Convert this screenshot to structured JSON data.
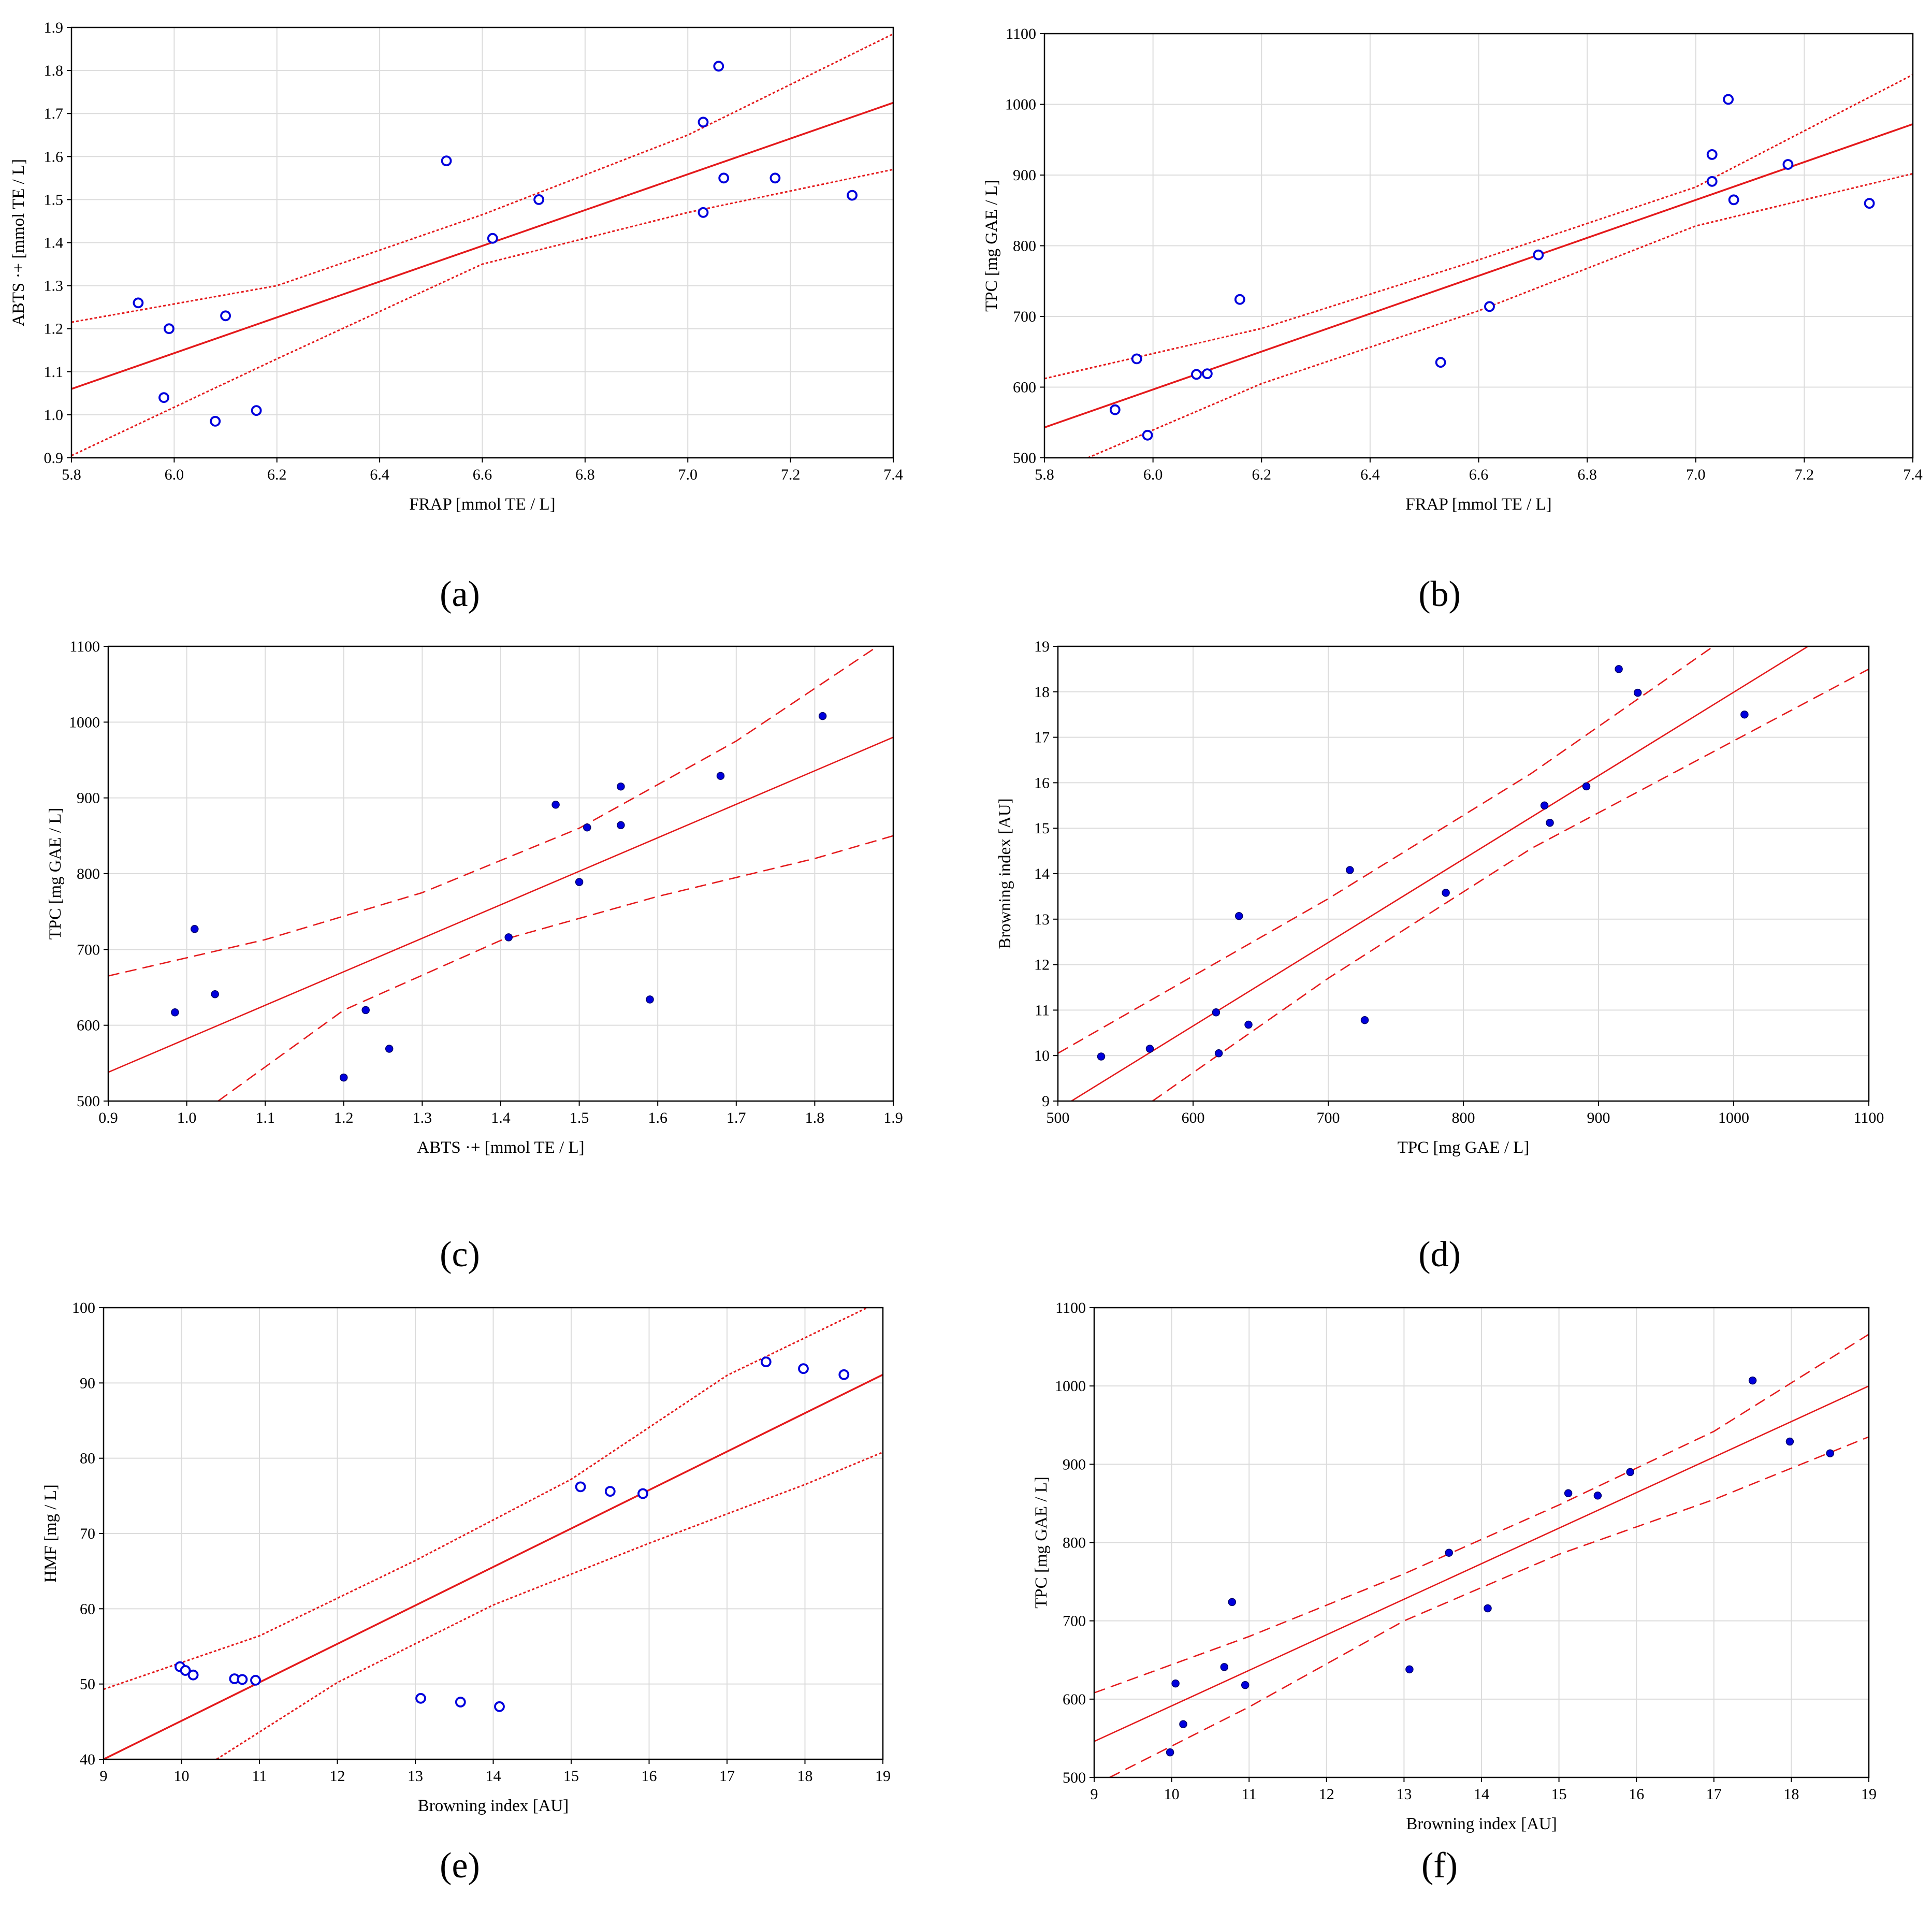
{
  "chart_data": [
    {
      "id": "a",
      "type": "scatter",
      "caption": "(a)",
      "xlabel": "FRAP [mmol TE / L]",
      "ylabel": "ABTS ·+ [mmol TE / L]",
      "xlim": [
        5.8,
        7.4
      ],
      "ylim": [
        0.9,
        1.9
      ],
      "xticks": [
        "5.8",
        "6.0",
        "6.2",
        "6.4",
        "6.6",
        "6.8",
        "7.0",
        "7.2",
        "7.4"
      ],
      "yticks": [
        "0.9",
        "1.0",
        "1.1",
        "1.2",
        "1.3",
        "1.4",
        "1.5",
        "1.6",
        "1.7",
        "1.8",
        "1.9"
      ],
      "grid": true,
      "points": {
        "x": [
          5.93,
          5.99,
          6.1,
          5.98,
          6.08,
          6.16,
          6.53,
          6.62,
          6.71,
          7.03,
          7.06,
          7.07,
          7.03,
          7.17,
          7.32
        ],
        "y": [
          1.26,
          1.2,
          1.23,
          1.04,
          0.985,
          1.01,
          1.59,
          1.41,
          1.5,
          1.68,
          1.81,
          1.55,
          1.47,
          1.55,
          1.51
        ]
      },
      "fit": {
        "x": [
          5.8,
          7.4
        ],
        "y": [
          1.06,
          1.725
        ]
      },
      "ci_upper": {
        "x": [
          5.8,
          6.2,
          6.6,
          7.0,
          7.4
        ],
        "y": [
          1.215,
          1.3,
          1.465,
          1.65,
          1.885
        ]
      },
      "ci_lower": {
        "x": [
          5.8,
          6.2,
          6.6,
          7.0,
          7.4
        ],
        "y": [
          0.905,
          1.13,
          1.35,
          1.47,
          1.57
        ]
      },
      "line_style": "dotted",
      "marker": "open"
    },
    {
      "id": "b",
      "type": "scatter",
      "caption": "(b)",
      "xlabel": "FRAP [mmol TE / L]",
      "ylabel": "TPC [mg GAE / L]",
      "xlim": [
        5.8,
        7.4
      ],
      "ylim": [
        500,
        1100
      ],
      "xticks": [
        "5.8",
        "6.0",
        "6.2",
        "6.4",
        "6.6",
        "6.8",
        "7.0",
        "7.2",
        "7.4"
      ],
      "yticks": [
        "500",
        "600",
        "700",
        "800",
        "900",
        "1000",
        "1100"
      ],
      "grid": true,
      "points": {
        "x": [
          5.93,
          5.97,
          5.99,
          6.08,
          6.1,
          6.16,
          6.53,
          6.62,
          6.71,
          7.03,
          7.03,
          7.06,
          7.07,
          7.17,
          7.32
        ],
        "y": [
          568,
          640,
          532,
          618,
          619,
          724,
          635,
          714,
          787,
          929,
          891,
          1007,
          865,
          915,
          860
        ]
      },
      "fit": {
        "x": [
          5.8,
          7.4
        ],
        "y": [
          543,
          972
        ]
      },
      "ci_upper": {
        "x": [
          5.8,
          6.2,
          6.6,
          7.0,
          7.4
        ],
        "y": [
          612,
          683,
          780,
          883,
          1042
        ]
      },
      "ci_lower": {
        "x": [
          5.88,
          6.2,
          6.6,
          7.0,
          7.4
        ],
        "y": [
          500,
          605,
          708,
          828,
          902
        ]
      },
      "line_style": "dotted",
      "marker": "open"
    },
    {
      "id": "c",
      "type": "scatter",
      "caption": "(c)",
      "xlabel": "ABTS ·+ [mmol TE / L]",
      "ylabel": "TPC [mg GAE / L]",
      "xlim": [
        0.9,
        1.9
      ],
      "ylim": [
        500,
        1100
      ],
      "xticks": [
        "0.9",
        "1.0",
        "1.1",
        "1.2",
        "1.3",
        "1.4",
        "1.5",
        "1.6",
        "1.7",
        "1.8",
        "1.9"
      ],
      "yticks": [
        "500",
        "600",
        "700",
        "800",
        "900",
        "1000",
        "1100"
      ],
      "grid": true,
      "points": {
        "x": [
          0.985,
          1.01,
          1.036,
          1.2,
          1.228,
          1.258,
          1.41,
          1.47,
          1.5,
          1.51,
          1.553,
          1.553,
          1.59,
          1.68,
          1.81
        ],
        "y": [
          617,
          727,
          641,
          531,
          620,
          569,
          716,
          891,
          789,
          861,
          915,
          864,
          634,
          929,
          1008
        ]
      },
      "fit": {
        "x": [
          0.9,
          1.9
        ],
        "y": [
          538,
          980
        ]
      },
      "ci_upper": {
        "x": [
          0.9,
          1.1,
          1.3,
          1.5,
          1.7,
          1.88
        ],
        "y": [
          665,
          713,
          775,
          860,
          975,
          1100
        ]
      },
      "ci_lower": {
        "x": [
          1.04,
          1.2,
          1.4,
          1.6,
          1.8,
          1.9
        ],
        "y": [
          500,
          620,
          712,
          770,
          820,
          850
        ]
      },
      "line_style": "dashed",
      "marker": "filled"
    },
    {
      "id": "d",
      "type": "scatter",
      "caption": "(d)",
      "xlabel": "TPC [mg GAE / L]",
      "ylabel": "Browning index [AU]",
      "xlim": [
        500,
        1100
      ],
      "ylim": [
        9,
        19
      ],
      "xticks": [
        "500",
        "600",
        "700",
        "800",
        "900",
        "1000",
        "1100"
      ],
      "yticks": [
        "9",
        "10",
        "11",
        "12",
        "13",
        "14",
        "15",
        "16",
        "17",
        "18",
        "19"
      ],
      "grid": true,
      "points": {
        "x": [
          532,
          568,
          617,
          619,
          634,
          641,
          716,
          727,
          787,
          860,
          864,
          891,
          915,
          929,
          1008
        ],
        "y": [
          9.98,
          10.15,
          10.95,
          10.05,
          13.07,
          10.68,
          14.08,
          10.78,
          13.58,
          15.5,
          15.12,
          15.92,
          18.5,
          17.98,
          17.5
        ]
      },
      "fit": {
        "x": [
          510,
          1055
        ],
        "y": [
          9.0,
          19.0
        ]
      },
      "ci_upper": {
        "x": [
          500,
          700,
          850,
          985
        ],
        "y": [
          10.05,
          13.45,
          16.2,
          19.0
        ]
      },
      "ci_lower": {
        "x": [
          570,
          700,
          850,
          1100
        ],
        "y": [
          9.0,
          11.7,
          14.55,
          18.5
        ]
      },
      "line_style": "dashed",
      "marker": "filled"
    },
    {
      "id": "e",
      "type": "scatter",
      "caption": "(e)",
      "xlabel": "Browning index [AU]",
      "ylabel": "HMF [mg / L]",
      "xlim": [
        9,
        19
      ],
      "ylim": [
        40,
        100
      ],
      "xticks": [
        "9",
        "10",
        "11",
        "12",
        "13",
        "14",
        "15",
        "16",
        "17",
        "18",
        "19"
      ],
      "yticks": [
        "40",
        "50",
        "60",
        "70",
        "80",
        "90",
        "100"
      ],
      "grid": true,
      "points": {
        "x": [
          9.98,
          10.05,
          10.15,
          10.68,
          10.78,
          10.95,
          13.07,
          13.58,
          14.08,
          15.12,
          15.5,
          15.92,
          17.5,
          17.98,
          18.5
        ],
        "y": [
          52.3,
          51.8,
          51.2,
          50.7,
          50.6,
          50.5,
          48.1,
          47.6,
          47.0,
          76.2,
          75.6,
          75.3,
          92.8,
          91.9,
          91.1
        ]
      },
      "fit": {
        "x": [
          9,
          19
        ],
        "y": [
          40,
          91.1
        ]
      },
      "ci_upper": {
        "x": [
          9,
          11,
          13,
          15,
          17,
          18.8
        ],
        "y": [
          49.3,
          56.4,
          66.4,
          77.2,
          91.0,
          100
        ]
      },
      "ci_lower": {
        "x": [
          10.45,
          12,
          14,
          16,
          18,
          19
        ],
        "y": [
          40,
          50.2,
          60.5,
          68.7,
          76.5,
          80.8
        ]
      },
      "line_style": "dotted",
      "marker": "open"
    },
    {
      "id": "f",
      "type": "scatter",
      "caption": "(f)",
      "xlabel": "Browning index [AU]",
      "ylabel": "TPC [mg GAE / L]",
      "xlim": [
        9,
        19
      ],
      "ylim": [
        500,
        1100
      ],
      "xticks": [
        "9",
        "10",
        "11",
        "12",
        "13",
        "14",
        "15",
        "16",
        "17",
        "18",
        "19"
      ],
      "yticks": [
        "500",
        "600",
        "700",
        "800",
        "900",
        "1000",
        "1100"
      ],
      "grid": true,
      "points": {
        "x": [
          9.98,
          10.05,
          10.15,
          10.68,
          10.78,
          10.95,
          13.07,
          13.58,
          14.08,
          15.12,
          15.5,
          15.92,
          17.5,
          17.98,
          18.5
        ],
        "y": [
          532,
          620,
          568,
          641,
          724,
          618,
          638,
          787,
          716,
          863,
          860,
          890,
          1007,
          929,
          914
        ]
      },
      "fit": {
        "x": [
          9,
          19
        ],
        "y": [
          546,
          1000
        ]
      },
      "ci_upper": {
        "x": [
          9,
          11,
          13,
          15,
          17,
          19
        ],
        "y": [
          608,
          680,
          760,
          848,
          942,
          1066
        ]
      },
      "ci_lower": {
        "x": [
          9.2,
          11,
          13,
          15,
          17,
          19
        ],
        "y": [
          500,
          590,
          700,
          785,
          855,
          935
        ]
      },
      "line_style": "dashed",
      "marker": "filled"
    }
  ],
  "colors": {
    "point": "#0000dd",
    "fit": "#e41a1c",
    "grid": "#dcdcdc",
    "axis": "#000000"
  }
}
